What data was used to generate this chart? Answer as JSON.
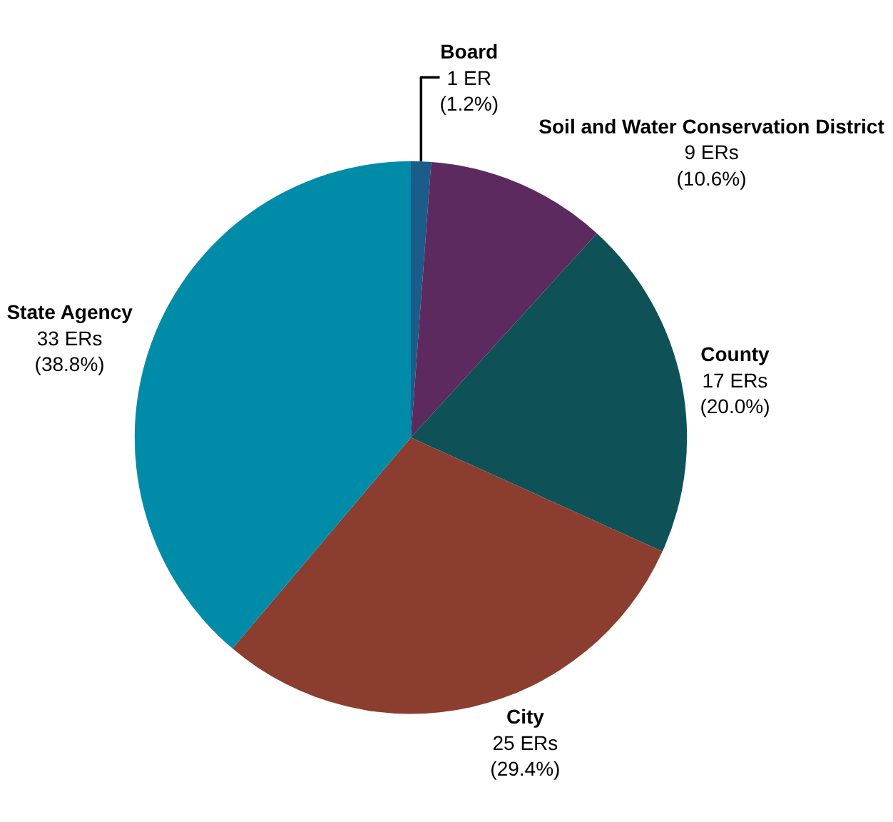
{
  "chart_data": {
    "type": "pie",
    "categories": [
      "Board",
      "Soil and Water Conservation District",
      "County",
      "City",
      "State Agency"
    ],
    "values": [
      1,
      9,
      17,
      25,
      33
    ],
    "colors": [
      "#1a5c8a",
      "#5c2a5e",
      "#0e5258",
      "#8b3e2f",
      "#008ca8"
    ],
    "value_labels": [
      "1 ER\n(1.2%)",
      "9 ERs\n(10.6%)",
      "17 ERs\n(20.0%)",
      "25 ERs\n(29.4%)",
      "33 ERs\n(38.8%)"
    ],
    "legend": false
  }
}
